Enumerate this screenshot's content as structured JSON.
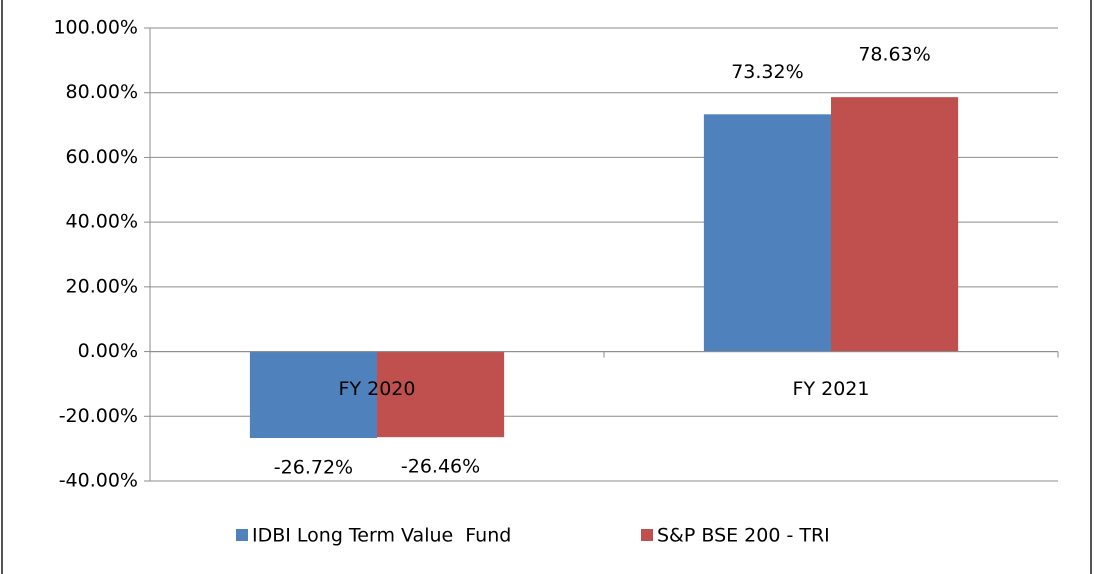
{
  "chart_data": {
    "type": "bar",
    "categories": [
      "FY 2020",
      "FY 2021"
    ],
    "series": [
      {
        "name": "IDBI Long Term Value  Fund",
        "color": "#4f81bd",
        "values": [
          -26.72,
          73.32
        ],
        "value_labels": [
          "-26.72%",
          "73.32%"
        ]
      },
      {
        "name": "S&P BSE 200 - TRI",
        "color": "#c0504d",
        "values": [
          -26.46,
          78.63
        ],
        "value_labels": [
          "-26.46%",
          "78.63%"
        ]
      }
    ],
    "ylim": [
      -40,
      100
    ],
    "yticks": [
      {
        "value": -40,
        "label": "-40.00%"
      },
      {
        "value": -20,
        "label": "-20.00%"
      },
      {
        "value": 0,
        "label": "0.00%"
      },
      {
        "value": 20,
        "label": "20.00%"
      },
      {
        "value": 40,
        "label": "40.00%"
      },
      {
        "value": 60,
        "label": "60.00%"
      },
      {
        "value": 80,
        "label": "80.00%"
      },
      {
        "value": 100,
        "label": "100.00%"
      }
    ],
    "grid": true,
    "legend": "bottom"
  }
}
